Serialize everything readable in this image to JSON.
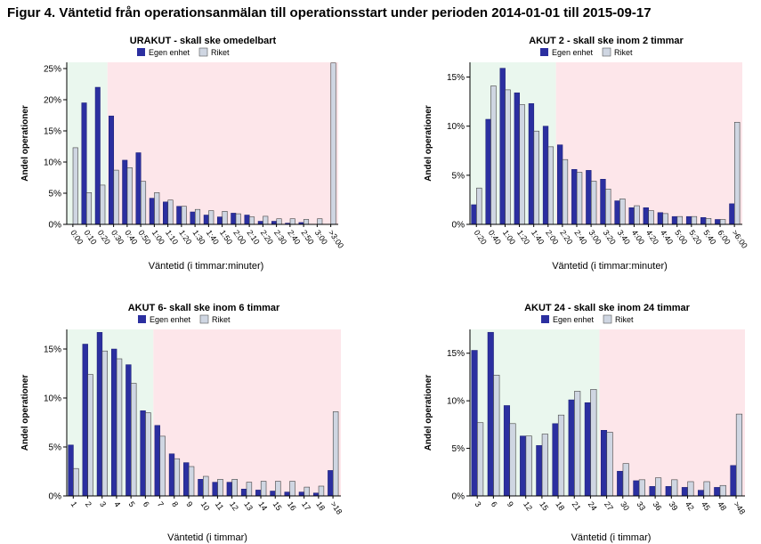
{
  "figure_title": "Figur 4. Väntetid från operationsanmälan till operationsstart under perioden 2014-01-01 till 2015-09-17",
  "legend": {
    "own": "Egen enhet",
    "all": "Riket"
  },
  "colors": {
    "own": "#2b2fa0",
    "all": "#cfd6e2",
    "zone_ok": "#eaf7ee",
    "zone_late": "#fde6ea",
    "axis": "#000000"
  },
  "chart_data": [
    {
      "type": "bar",
      "title": "URAKUT - skall ske omedelbart",
      "xlabel": "Väntetid (i timmar:minuter)",
      "ylabel": "Andel operationer",
      "ylim": [
        0,
        26
      ],
      "yticks": [
        0,
        5,
        10,
        15,
        20,
        25
      ],
      "green_zone_categories": 3,
      "categories": [
        "0:00",
        "0:10",
        "0:20",
        "0:30",
        "0:40",
        "0:50",
        "1:00",
        "1:10",
        "1:20",
        "1:30",
        "1:40",
        "1:50",
        "2:00",
        "2:10",
        "2:20",
        "2:30",
        "2:40",
        "2:50",
        "3:00",
        ">3:00"
      ],
      "series": [
        {
          "name": "Egen enhet",
          "values": [
            0,
            19.5,
            22,
            17.4,
            10.3,
            11.5,
            4.2,
            3.6,
            2.9,
            2.0,
            1.5,
            1.2,
            1.8,
            1.5,
            0.5,
            0.5,
            0.2,
            0.3,
            0,
            0
          ]
        },
        {
          "name": "Riket",
          "values": [
            12.3,
            5.1,
            6.3,
            8.7,
            9.1,
            6.9,
            5.1,
            3.9,
            2.9,
            2.4,
            2.2,
            2.1,
            1.7,
            1.2,
            1.3,
            0.9,
            0.9,
            0.8,
            0.9,
            25.9
          ]
        }
      ]
    },
    {
      "type": "bar",
      "title": "AKUT 2 - skall ske inom 2 timmar",
      "xlabel": "Väntetid (i timmar:minuter)",
      "ylabel": "Andel operationer",
      "ylim": [
        0,
        16.5
      ],
      "yticks": [
        0,
        5,
        10,
        15
      ],
      "green_zone_categories": 6,
      "categories": [
        "0:20",
        "0:40",
        "1:00",
        "1:20",
        "1:40",
        "2:00",
        "2:20",
        "2:40",
        "3:00",
        "3:20",
        "3:40",
        "4:00",
        "4:20",
        "4:40",
        "5:00",
        "5:20",
        "5:40",
        "6:00",
        ">6:00"
      ],
      "series": [
        {
          "name": "Egen enhet",
          "values": [
            2.0,
            10.7,
            15.9,
            13.4,
            12.3,
            10.0,
            8.1,
            5.6,
            5.5,
            4.6,
            2.4,
            1.7,
            1.7,
            1.2,
            0.8,
            0.8,
            0.7,
            0.5,
            2.1
          ]
        },
        {
          "name": "Riket",
          "values": [
            3.7,
            14.1,
            13.7,
            12.2,
            9.5,
            7.9,
            6.6,
            5.3,
            4.4,
            3.6,
            2.6,
            1.9,
            1.4,
            1.1,
            0.8,
            0.8,
            0.6,
            0.5,
            10.4
          ]
        }
      ]
    },
    {
      "type": "bar",
      "title": "AKUT 6- skall ske inom 6 timmar",
      "xlabel": "Väntetid (i timmar)",
      "ylabel": "Andel operationer",
      "ylim": [
        0,
        17
      ],
      "yticks": [
        0,
        5,
        10,
        15
      ],
      "green_zone_categories": 6,
      "categories": [
        "1",
        "2",
        "3",
        "4",
        "5",
        "6",
        "7",
        "8",
        "9",
        "10",
        "11",
        "12",
        "13",
        "14",
        "15",
        "16",
        "17",
        "18",
        ">18"
      ],
      "series": [
        {
          "name": "Egen enhet",
          "values": [
            5.2,
            15.5,
            16.7,
            15.0,
            13.4,
            8.7,
            7.2,
            4.3,
            3.4,
            1.7,
            1.4,
            1.4,
            0.7,
            0.6,
            0.5,
            0.4,
            0.4,
            0.3,
            2.6
          ]
        },
        {
          "name": "Riket",
          "values": [
            2.8,
            12.4,
            14.8,
            14.0,
            11.5,
            8.5,
            6.1,
            3.8,
            3.0,
            2.0,
            1.7,
            1.7,
            1.4,
            1.5,
            1.5,
            1.5,
            0.9,
            1.0,
            8.6
          ]
        }
      ]
    },
    {
      "type": "bar",
      "title": "AKUT 24 - skall ske inom 24 timmar",
      "xlabel": "Väntetid (i timmar)",
      "ylabel": "Andel operationer",
      "ylim": [
        0,
        17.5
      ],
      "yticks": [
        0,
        5,
        10,
        15
      ],
      "green_zone_categories": 8,
      "categories": [
        "3",
        "6",
        "9",
        "12",
        "15",
        "18",
        "21",
        "24",
        "27",
        "30",
        "33",
        "36",
        "39",
        "42",
        "45",
        "48",
        ">48"
      ],
      "series": [
        {
          "name": "Egen enhet",
          "values": [
            15.3,
            17.2,
            9.5,
            6.3,
            5.3,
            7.6,
            10.1,
            9.8,
            6.9,
            2.6,
            1.6,
            1.0,
            1.0,
            0.9,
            0.6,
            0.9,
            3.2
          ]
        },
        {
          "name": "Riket",
          "values": [
            7.7,
            12.7,
            7.6,
            6.3,
            6.5,
            8.5,
            11.0,
            11.2,
            6.7,
            3.4,
            1.7,
            1.9,
            1.7,
            1.5,
            1.5,
            1.1,
            8.6
          ]
        }
      ]
    }
  ]
}
